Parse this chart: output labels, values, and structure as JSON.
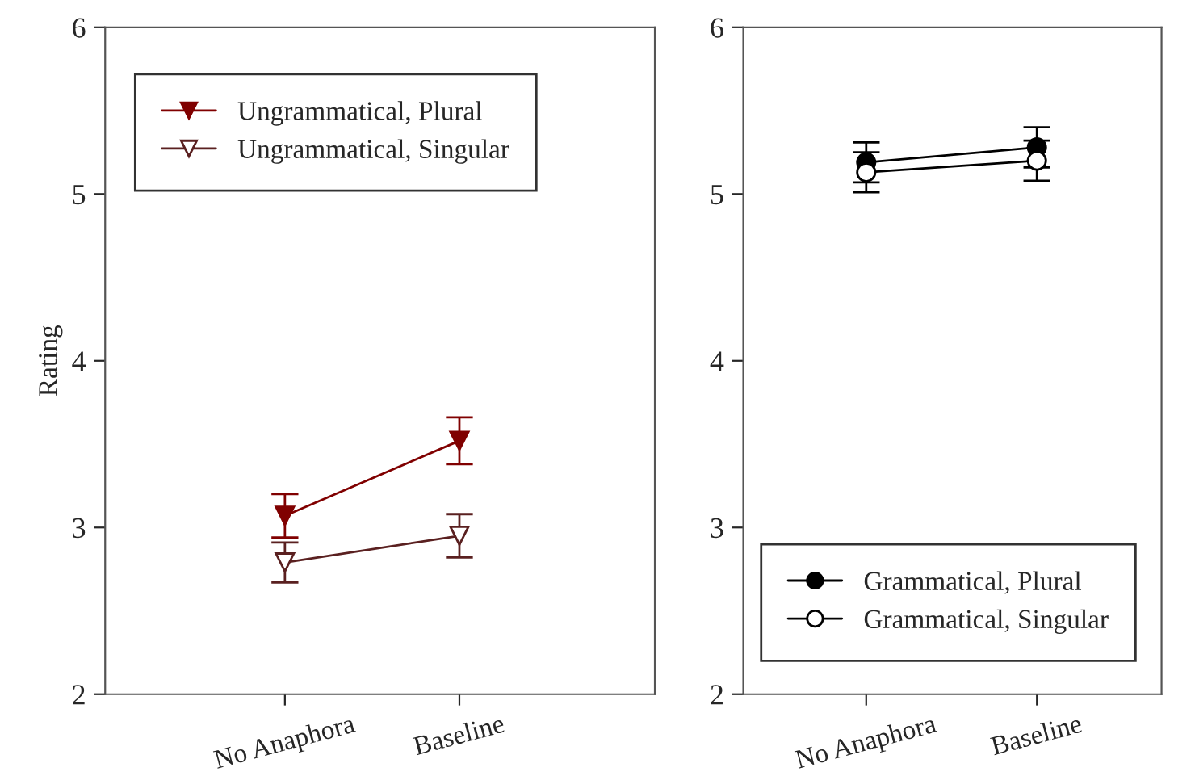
{
  "chart_data": [
    {
      "type": "line",
      "ylabel": "Rating",
      "categories": [
        "No Anaphora",
        "Baseline"
      ],
      "ylim": [
        2,
        6
      ],
      "yticks": [
        2,
        3,
        4,
        5,
        6
      ],
      "marker": "triangle",
      "legend": "top left",
      "grid": false,
      "series": [
        {
          "name": "Ungrammatical, Plural",
          "color": "#800000",
          "values": [
            3.07,
            3.52
          ],
          "errors": [
            0.13,
            0.14
          ]
        },
        {
          "name": "Ungrammatical, Singular",
          "color": "#5a2020",
          "values": [
            2.79,
            2.95
          ],
          "errors": [
            0.12,
            0.13
          ]
        }
      ]
    },
    {
      "type": "line",
      "categories": [
        "No Anaphora",
        "Baseline"
      ],
      "ylim": [
        2,
        6
      ],
      "yticks": [
        2,
        3,
        4,
        5,
        6
      ],
      "marker": "circle",
      "legend": "bottom right",
      "grid": false,
      "series": [
        {
          "name": "Grammatical, Plural",
          "color": "#000000",
          "values": [
            5.19,
            5.28
          ],
          "errors": [
            0.12,
            0.12
          ]
        },
        {
          "name": "Grammatical, Singular",
          "color": "#000000",
          "values": [
            5.13,
            5.2
          ],
          "errors": [
            0.12,
            0.12
          ]
        }
      ]
    }
  ]
}
